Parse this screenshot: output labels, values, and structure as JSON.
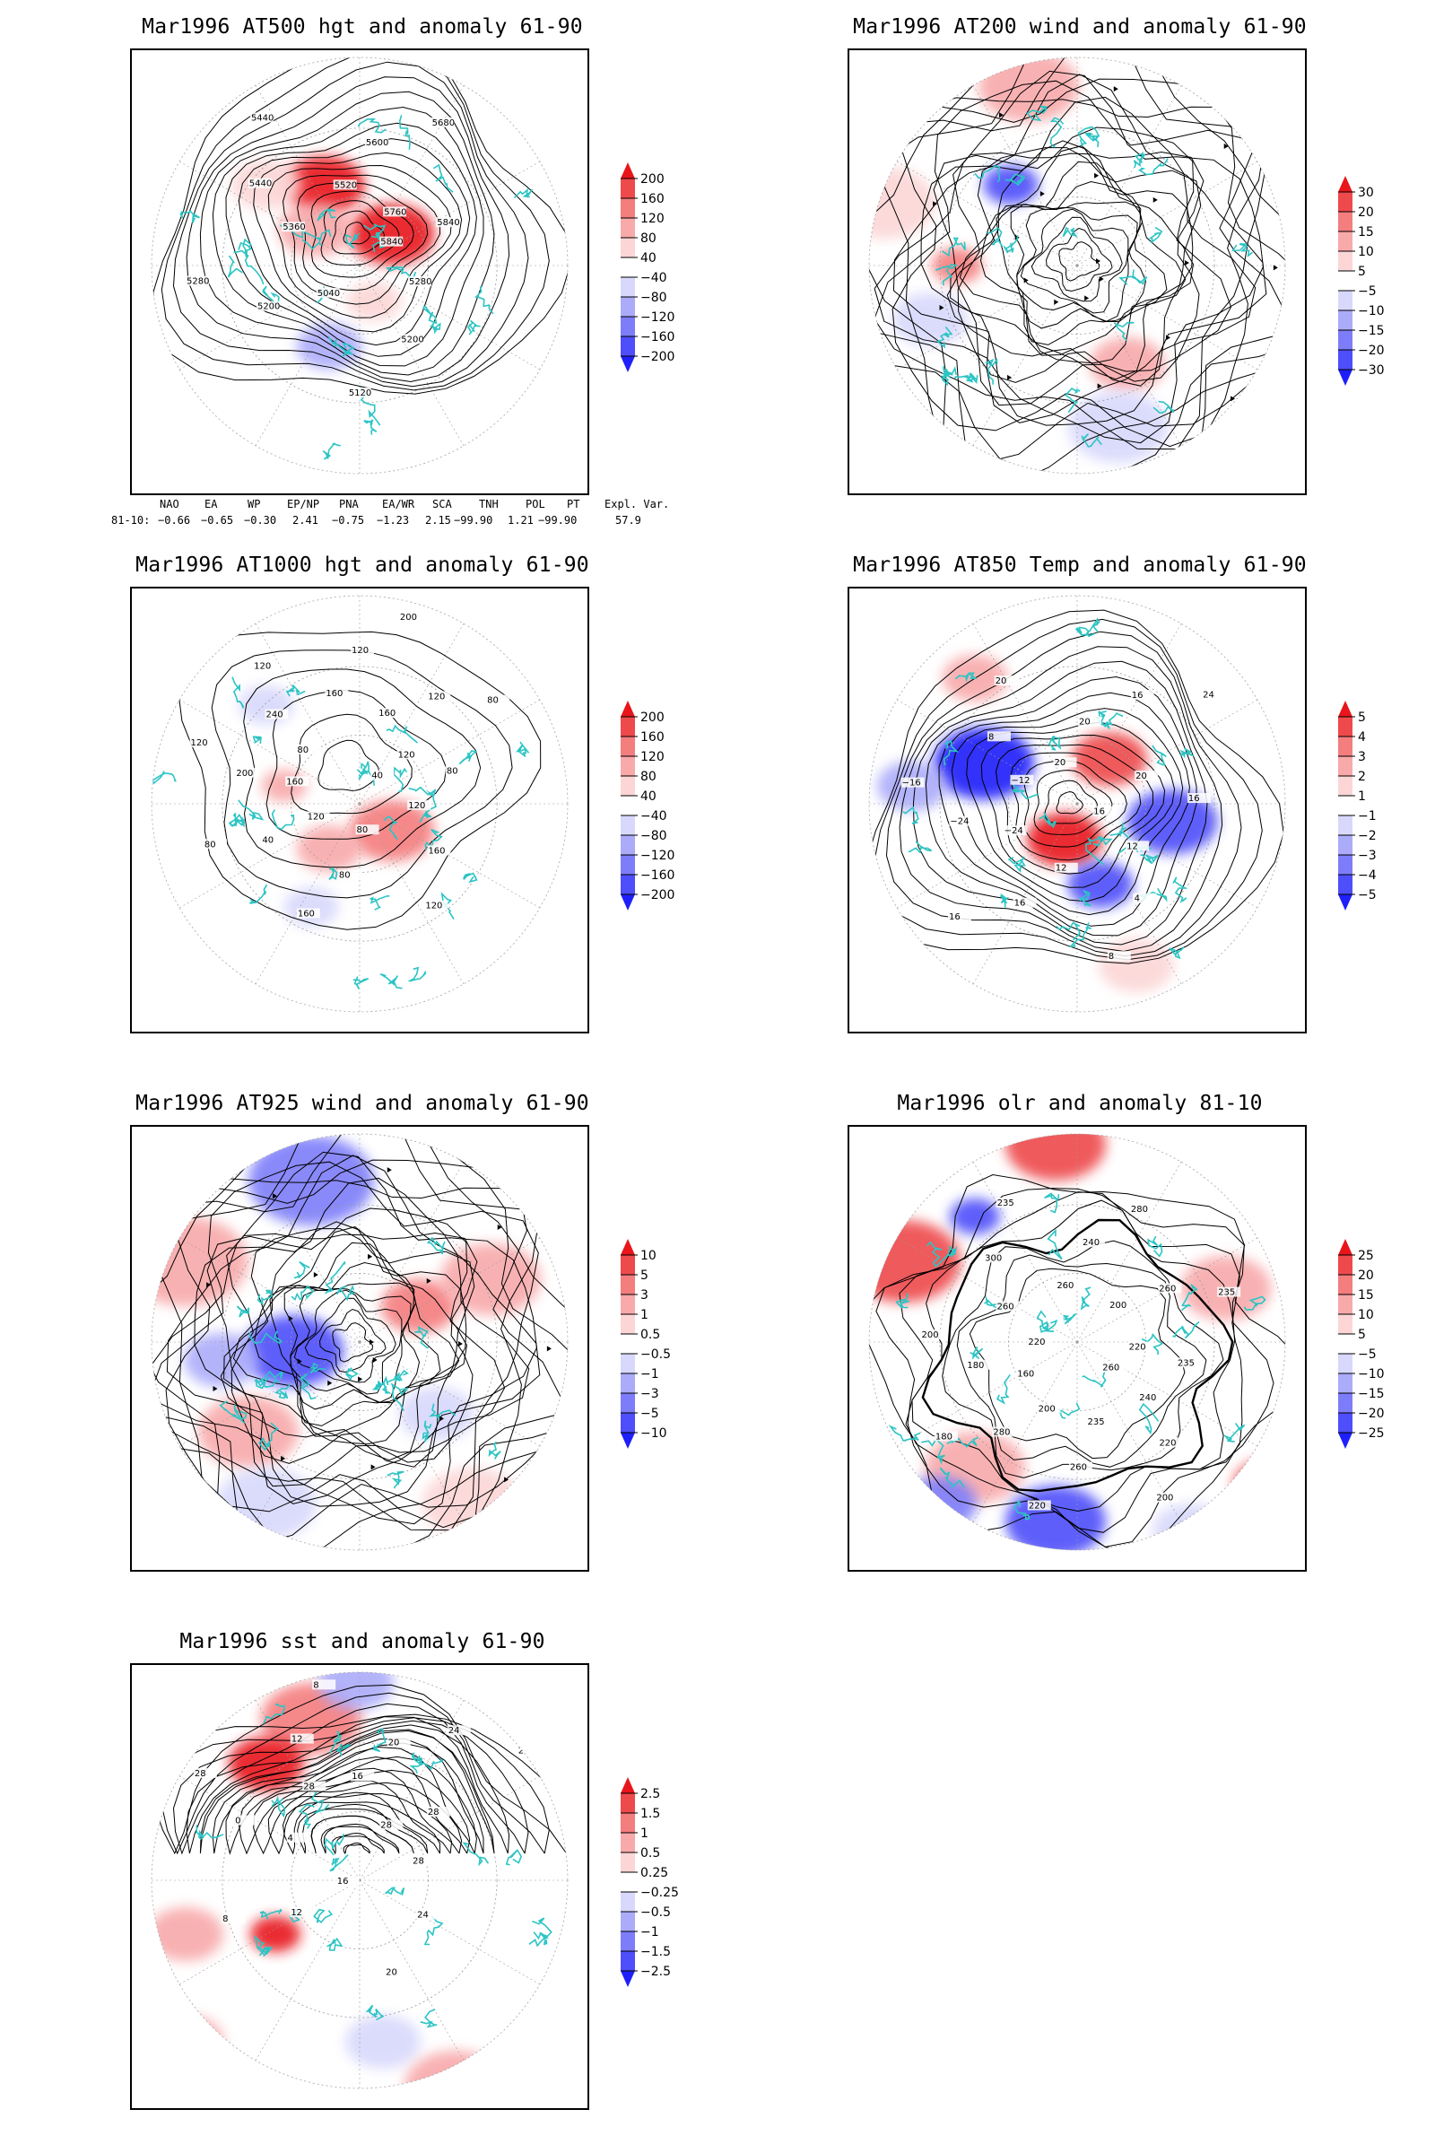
{
  "panels": [
    {
      "id": "p1",
      "title": "Mar1996 AT500 hgt and anomaly 61-90",
      "contour_labels": [
        "5840",
        "5280",
        "5200",
        "5120",
        "5040",
        "5200",
        "5280",
        "5360",
        "5440",
        "5440",
        "5520",
        "5600",
        "5680",
        "5760",
        "5840"
      ],
      "colorbar": [
        "200",
        "160",
        "120",
        "80",
        "40",
        "−40",
        "−80",
        "−120",
        "−160",
        "−200"
      ]
    },
    {
      "id": "p2",
      "title": "Mar1996 AT200 wind and anomaly 61-90",
      "contour_labels": [],
      "colorbar": [
        "30",
        "20",
        "15",
        "10",
        "5",
        "−5",
        "−10",
        "−15",
        "−20",
        "−30"
      ]
    },
    {
      "id": "p3",
      "title": "Mar1996 AT1000 hgt and anomaly 61-90",
      "contour_labels": [
        "40",
        "120",
        "160",
        "120",
        "80",
        "80",
        "160",
        "120",
        "40",
        "80",
        "160",
        "200",
        "120",
        "80",
        "240",
        "120",
        "80",
        "160",
        "120",
        "200",
        "160",
        "120",
        "80",
        "120",
        "80"
      ],
      "colorbar": [
        "200",
        "160",
        "120",
        "80",
        "40",
        "−40",
        "−80",
        "−120",
        "−160",
        "−200"
      ]
    },
    {
      "id": "p4",
      "title": "Mar1996 AT850 Temp and anomaly 61-90",
      "contour_labels": [
        "16",
        "12",
        "4",
        "8",
        "12",
        "16",
        "16",
        "−24",
        "−24",
        "−16",
        "−12",
        "8",
        "20",
        "20",
        "20",
        "16",
        "24",
        "20",
        "16"
      ],
      "colorbar": [
        "5",
        "4",
        "3",
        "2",
        "1",
        "−1",
        "−2",
        "−3",
        "−4",
        "−5"
      ]
    },
    {
      "id": "p5",
      "title": "Mar1996 AT925 wind and anomaly 61-90",
      "contour_labels": [],
      "colorbar": [
        "10",
        "5",
        "3",
        "1",
        "0.5",
        "−0.5",
        "−1",
        "−3",
        "−5",
        "−10"
      ]
    },
    {
      "id": "p6",
      "title": "Mar1996 olr and anomaly 81-10",
      "contour_labels": [
        "260",
        "240",
        "220",
        "200",
        "235",
        "260",
        "220",
        "200",
        "280",
        "180",
        "160",
        "180",
        "200",
        "220",
        "260",
        "300",
        "235",
        "260",
        "240",
        "280",
        "200",
        "260",
        "235",
        "220",
        "235"
      ],
      "colorbar": [
        "25",
        "20",
        "15",
        "10",
        "5",
        "−5",
        "−10",
        "−15",
        "−20",
        "−25"
      ]
    },
    {
      "id": "p7",
      "title": "Mar1996 sst and anomaly 61-90",
      "contour_labels": [
        "28",
        "28",
        "24",
        "20",
        "16",
        "12",
        "8",
        "4",
        "0",
        "28",
        "28",
        "12",
        "8",
        "16",
        "20",
        "24",
        "28",
        "28"
      ],
      "colorbar": [
        "2.5",
        "1.5",
        "1",
        "0.5",
        "0.25",
        "−0.25",
        "−0.5",
        "−1",
        "−1.5",
        "−2.5"
      ]
    }
  ],
  "teleconnection": {
    "headers": [
      "NAO",
      "EA",
      "WP",
      "EP/NP",
      "PNA",
      "EA/WR",
      "SCA",
      "TNH",
      "POL",
      "PT",
      "Expl. Var."
    ],
    "row_label": "81-10:",
    "values": [
      "−0.66",
      "−0.65",
      "−0.30",
      "2.41",
      "−0.75",
      "−1.23",
      "2.15",
      "−99.90",
      "1.21",
      "−99.90",
      "57.9"
    ]
  },
  "colors": {
    "positive_strong": "#e41a1c",
    "positive_weak": "#fbd3d3",
    "negative_strong": "#2b2bff",
    "negative_weak": "#d6d6fb",
    "coastline": "#2cc4c4",
    "contour": "#000000",
    "grid": "#9a9a9a"
  }
}
